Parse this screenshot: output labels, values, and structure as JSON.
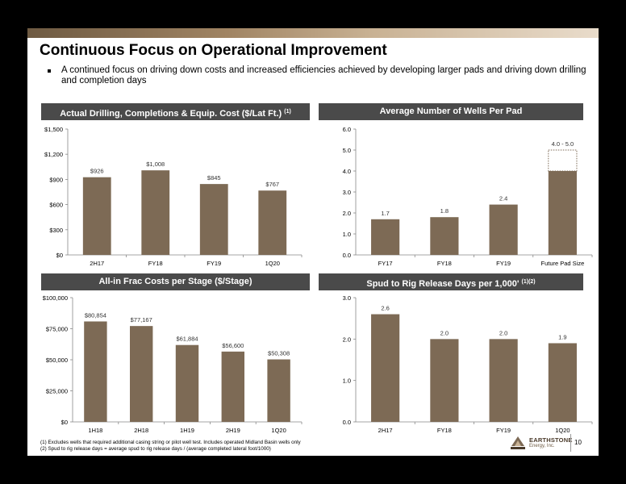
{
  "title": "Continuous Focus on Operational Improvement",
  "bullet": "A continued focus on driving down costs and increased efficiencies achieved by developing larger pads and driving down drilling and completion days",
  "colors": {
    "bar": "#7d6a55",
    "header": "#4a4a4a",
    "accent": "#a08463"
  },
  "charts": {
    "drill": {
      "header": "Actual Drilling, Completions & Equip. Cost ($/Lat Ft.)",
      "header_sup": "(1)",
      "chart_data": {
        "type": "bar",
        "categories": [
          "2H17",
          "FY18",
          "FY19",
          "1Q20"
        ],
        "values": [
          926,
          1008,
          845,
          767
        ],
        "value_labels": [
          "$926",
          "$1,008",
          "$845",
          "$767"
        ],
        "ylim": [
          0,
          1500
        ],
        "yticks": [
          0,
          300,
          600,
          900,
          1200,
          1500
        ],
        "ytick_labels": [
          "$0",
          "$300",
          "$600",
          "$900",
          "$1,200",
          "$1,500"
        ]
      }
    },
    "wells": {
      "header": "Average Number of Wells Per Pad",
      "header_sup": "",
      "chart_data": {
        "type": "bar",
        "categories": [
          "FY17",
          "FY18",
          "FY19",
          "Future Pad Size"
        ],
        "values": [
          1.7,
          1.8,
          2.4,
          4.0
        ],
        "value_labels": [
          "1.7",
          "1.8",
          "2.4",
          "4.0 - 5.0"
        ],
        "range_top": 5.0,
        "ylim": [
          0,
          6
        ],
        "yticks": [
          0,
          1,
          2,
          3,
          4,
          5,
          6
        ],
        "ytick_labels": [
          "0.0",
          "1.0",
          "2.0",
          "3.0",
          "4.0",
          "5.0",
          "6.0"
        ]
      }
    },
    "frac": {
      "header": "All-in Frac Costs per Stage ($/Stage)",
      "header_sup": "",
      "chart_data": {
        "type": "bar",
        "categories": [
          "1H18",
          "2H18",
          "1H19",
          "2H19",
          "1Q20"
        ],
        "values": [
          80854,
          77167,
          61884,
          56600,
          50308
        ],
        "value_labels": [
          "$80,854",
          "$77,167",
          "$61,884",
          "$56,600",
          "$50,308"
        ],
        "ylim": [
          0,
          100000
        ],
        "yticks": [
          0,
          25000,
          50000,
          75000,
          100000
        ],
        "ytick_labels": [
          "$0",
          "$25,000",
          "$50,000",
          "$75,000",
          "$100,000"
        ]
      }
    },
    "spud": {
      "header": "Spud to Rig Release Days per 1,000'",
      "header_sup": "(1)(2)",
      "chart_data": {
        "type": "bar",
        "categories": [
          "2H17",
          "FY18",
          "FY19",
          "1Q20"
        ],
        "values": [
          2.6,
          2.0,
          2.0,
          1.9
        ],
        "value_labels": [
          "2.6",
          "2.0",
          "2.0",
          "1.9"
        ],
        "ylim": [
          0,
          3
        ],
        "yticks": [
          0,
          1,
          2,
          3
        ],
        "ytick_labels": [
          "0.0",
          "1.0",
          "2.0",
          "3.0"
        ]
      }
    }
  },
  "footnotes": [
    "(1)   Excludes wells that required additional casing string or pilot well test. Includes operated Midland Basin wells only",
    "(2)   Spud to rig release days = average spud to rig release days / (average completed lateral foot/1000)"
  ],
  "logo": {
    "name": "EARTHSTONE",
    "sub": "Energy, Inc."
  },
  "page_number": "10"
}
